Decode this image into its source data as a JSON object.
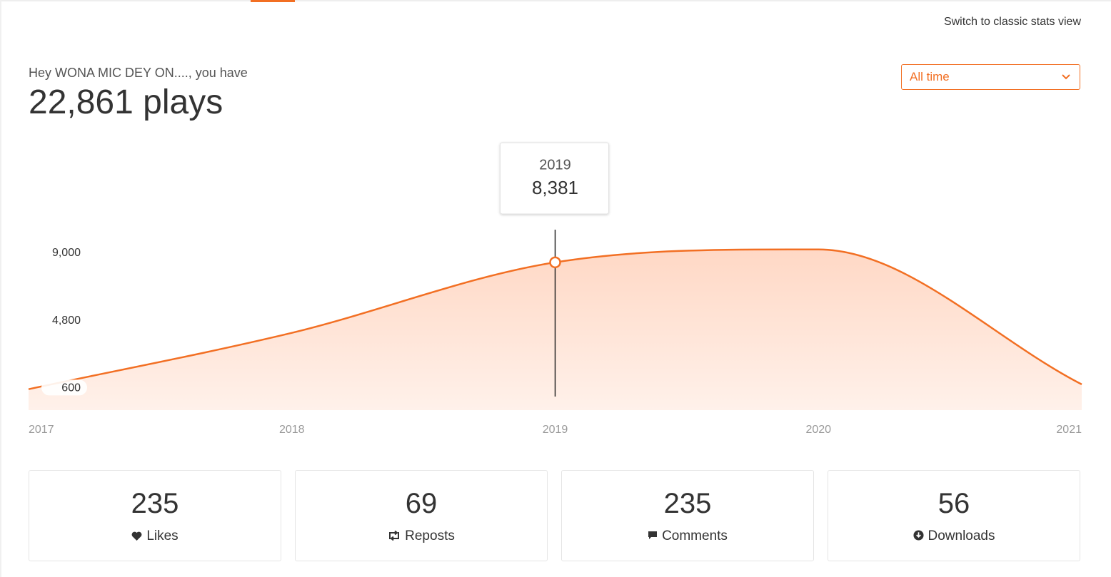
{
  "header": {
    "link": "Switch to classic stats view",
    "greeting": "Hey WONA MIC DEY ON...., you have",
    "total": "22,861 plays",
    "range": "All time"
  },
  "chart_data": {
    "type": "area",
    "x": [
      "2017",
      "2018",
      "2019",
      "2020",
      "2021"
    ],
    "values": [
      500,
      4000,
      8381,
      9180,
      800
    ],
    "value_labels": [
      null,
      null,
      "8,381",
      null,
      null
    ],
    "color": "#f26f23",
    "ylim": [
      -800,
      10500
    ],
    "yticks": [
      {
        "value": 9000,
        "label": "9,000"
      },
      {
        "value": 4800,
        "label": "4,800"
      },
      600
    ],
    "grid": false
  },
  "stats": [
    {
      "value": 235,
      "label": "Likes"
    },
    {
      "value": 69,
      "label": "Reposts"
    },
    {
      "value": 235,
      "label": "Comments"
    },
    {
      "value": 56,
      "label": "Downloads"
    }
  ]
}
